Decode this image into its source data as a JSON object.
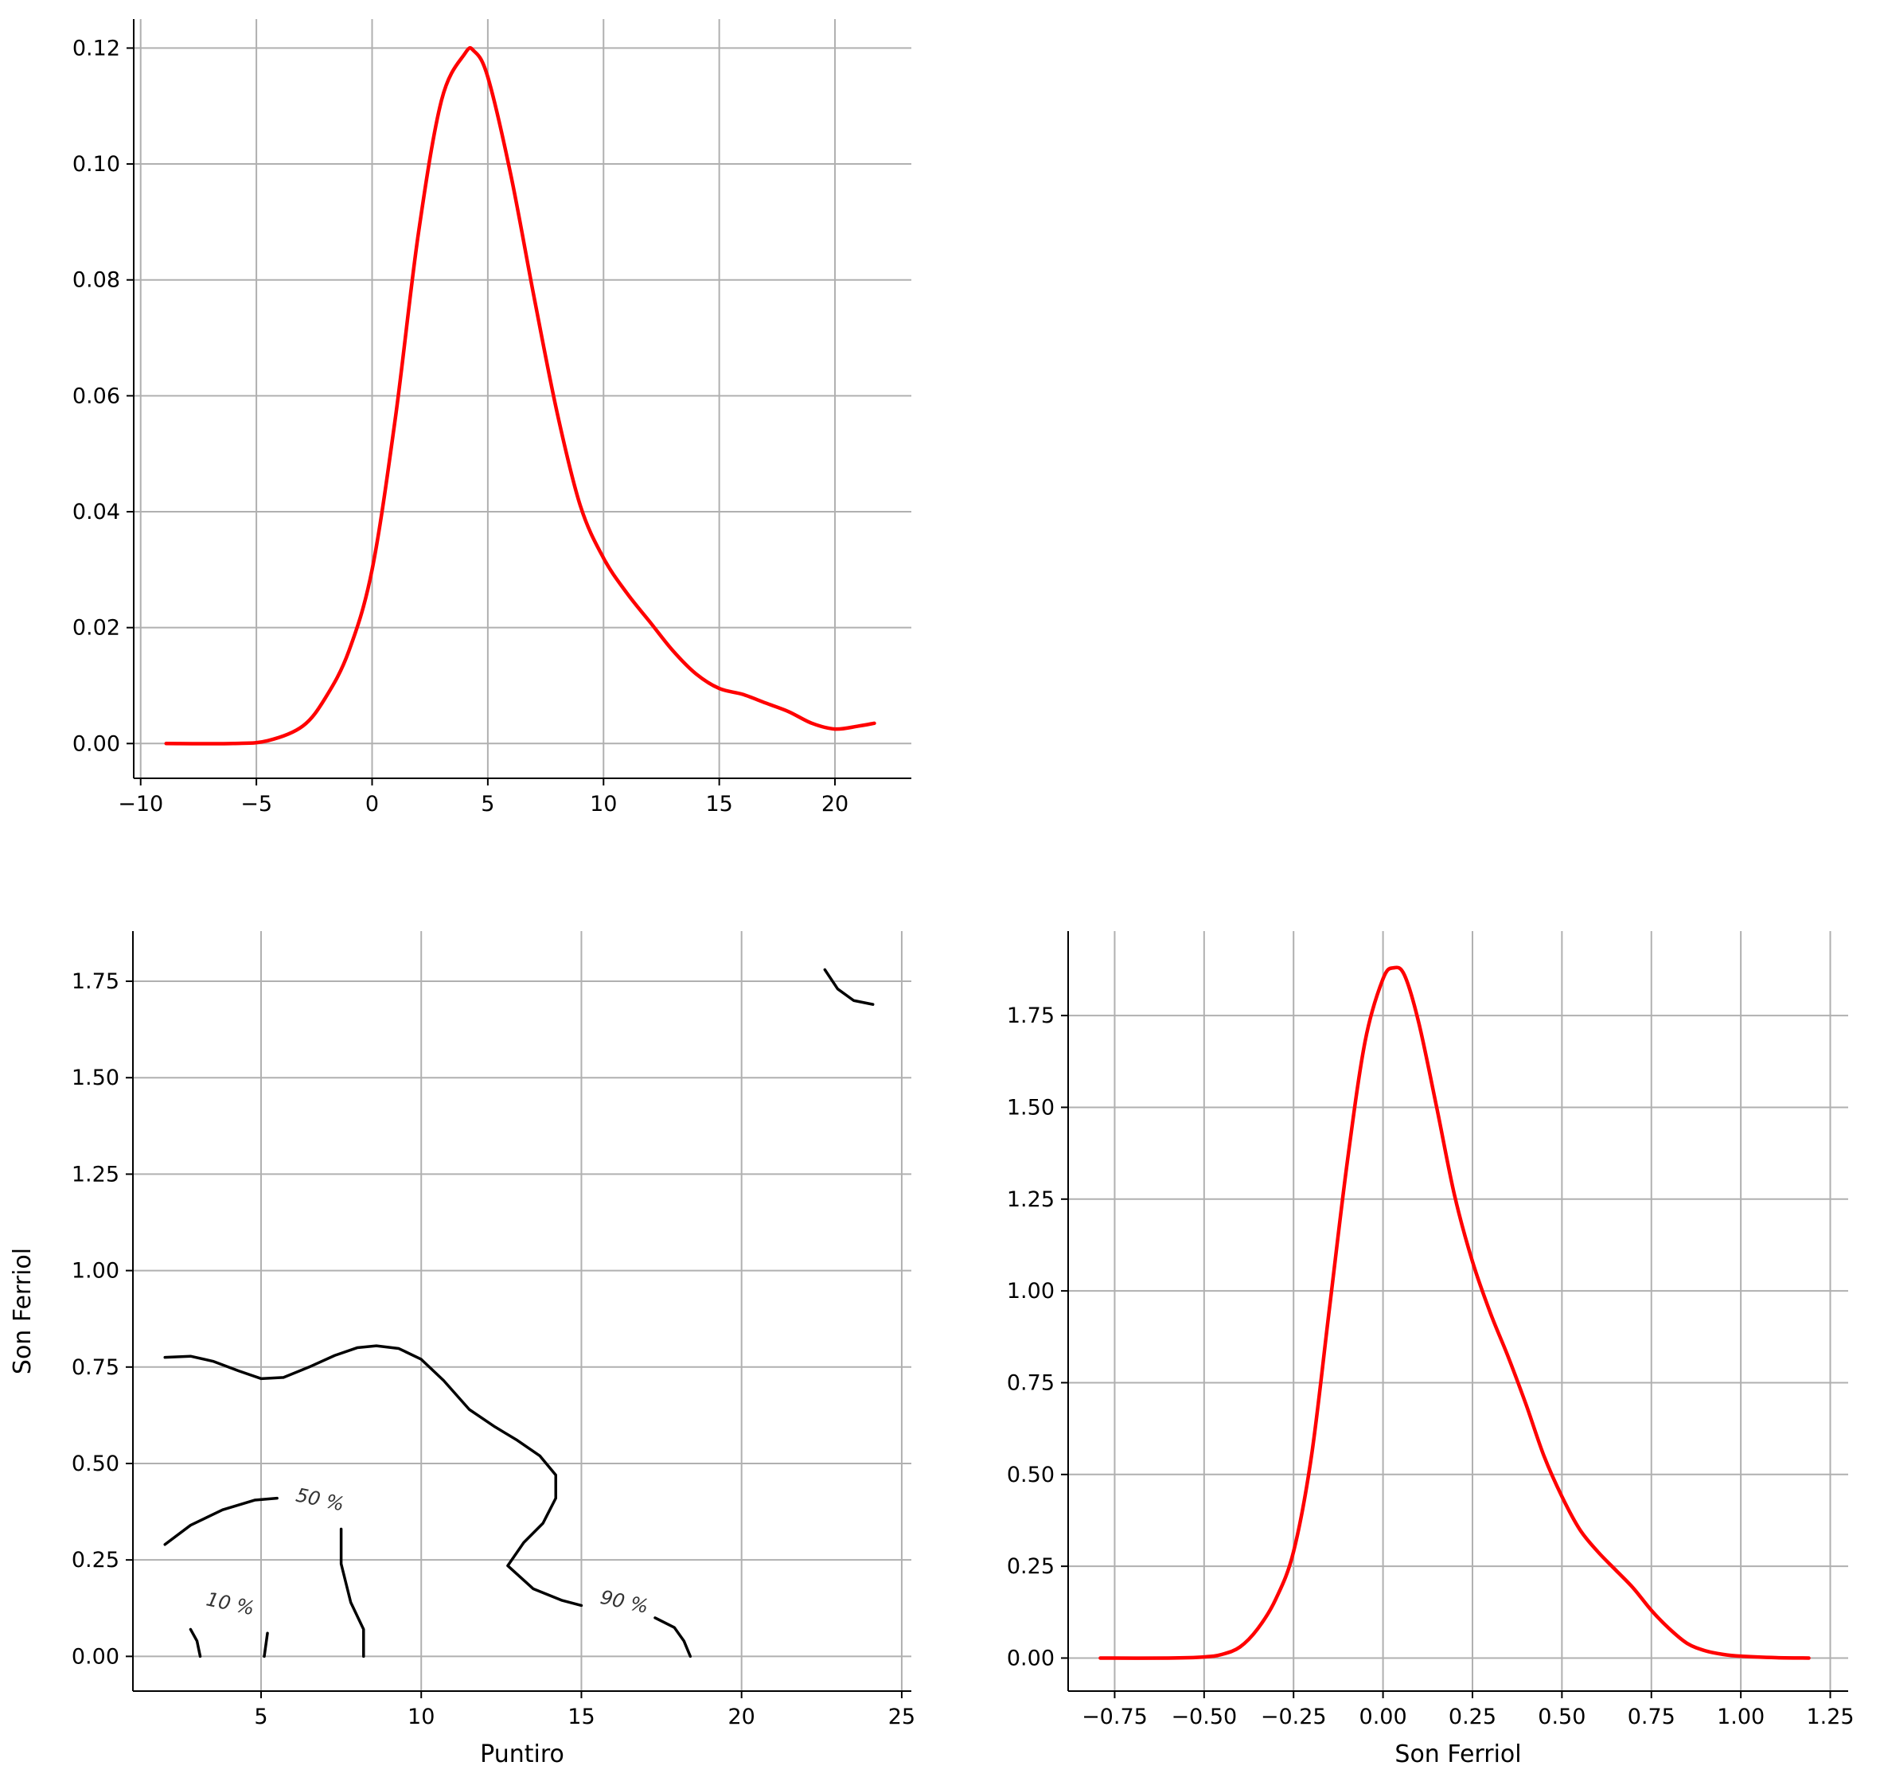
{
  "chart_data": [
    {
      "type": "line",
      "panel": "top-left",
      "title": "",
      "xlabel": "",
      "ylabel": "",
      "xlim": [
        -10.3,
        23.3
      ],
      "ylim": [
        -0.006,
        0.125
      ],
      "x_ticks": [
        -10,
        -5,
        0,
        5,
        10,
        15,
        20
      ],
      "x_tick_labels": [
        "−10",
        "−5",
        "0",
        "5",
        "10",
        "15",
        "20"
      ],
      "y_ticks": [
        0.0,
        0.02,
        0.04,
        0.06,
        0.08,
        0.1,
        0.12
      ],
      "y_tick_labels": [
        "0.00",
        "0.02",
        "0.04",
        "0.06",
        "0.08",
        "0.10",
        "0.12"
      ],
      "grid": true,
      "color": "#ff0000",
      "x": [
        -8.9,
        -6,
        -4.5,
        -3,
        -2,
        -1,
        0,
        1,
        2,
        3,
        4,
        4.4,
        5,
        6,
        7,
        8,
        9,
        10,
        11,
        12,
        13,
        14,
        15,
        16,
        17,
        18,
        19,
        20,
        21,
        21.7
      ],
      "y": [
        0.0,
        0.0,
        0.0005,
        0.003,
        0.008,
        0.016,
        0.03,
        0.056,
        0.088,
        0.111,
        0.119,
        0.1195,
        0.115,
        0.098,
        0.077,
        0.057,
        0.041,
        0.032,
        0.026,
        0.021,
        0.016,
        0.012,
        0.0095,
        0.0085,
        0.007,
        0.0055,
        0.0035,
        0.0025,
        0.003,
        0.0035
      ]
    },
    {
      "type": "contour",
      "panel": "bottom-left",
      "title": "",
      "xlabel": "Puntiro",
      "ylabel": "Son Ferriol",
      "xlim": [
        1.0,
        25.3
      ],
      "ylim": [
        -0.09,
        1.88
      ],
      "x_ticks": [
        5,
        10,
        15,
        20,
        25
      ],
      "x_tick_labels": [
        "5",
        "10",
        "15",
        "20",
        "25"
      ],
      "y_ticks": [
        0.0,
        0.25,
        0.5,
        0.75,
        1.0,
        1.25,
        1.5,
        1.75
      ],
      "y_tick_labels": [
        "0.00",
        "0.25",
        "0.50",
        "0.75",
        "1.00",
        "1.25",
        "1.50",
        "1.75"
      ],
      "grid": true,
      "color": "#000000",
      "levels": [
        {
          "label": "10 %",
          "label_at": [
            4.0,
            0.12
          ],
          "segments": [
            [
              [
                2.8,
                0.07
              ],
              [
                3.0,
                0.04
              ],
              [
                3.1,
                0.0
              ]
            ],
            [
              [
                5.2,
                0.06
              ],
              [
                5.1,
                0.0
              ]
            ]
          ]
        },
        {
          "label": "50 %",
          "label_at": [
            6.8,
            0.39
          ],
          "segments": [
            [
              [
                2.0,
                0.29
              ],
              [
                2.8,
                0.34
              ],
              [
                3.8,
                0.38
              ],
              [
                4.8,
                0.405
              ],
              [
                5.5,
                0.41
              ]
            ],
            [
              [
                7.5,
                0.33
              ],
              [
                7.5,
                0.24
              ],
              [
                7.8,
                0.14
              ],
              [
                8.2,
                0.07
              ],
              [
                8.2,
                0.0
              ]
            ]
          ]
        },
        {
          "label": "90 %",
          "label_at": [
            16.3,
            0.125
          ],
          "segments": [
            [
              [
                2.0,
                0.775
              ],
              [
                2.8,
                0.778
              ],
              [
                3.5,
                0.765
              ],
              [
                4.3,
                0.74
              ],
              [
                5.0,
                0.72
              ],
              [
                5.7,
                0.723
              ],
              [
                6.5,
                0.75
              ],
              [
                7.3,
                0.78
              ],
              [
                8.0,
                0.8
              ],
              [
                8.6,
                0.805
              ],
              [
                9.3,
                0.798
              ],
              [
                10.0,
                0.77
              ],
              [
                10.7,
                0.715
              ],
              [
                11.5,
                0.64
              ],
              [
                12.3,
                0.595
              ],
              [
                13.0,
                0.56
              ],
              [
                13.7,
                0.52
              ],
              [
                14.2,
                0.47
              ],
              [
                14.2,
                0.41
              ],
              [
                13.8,
                0.345
              ],
              [
                13.2,
                0.295
              ],
              [
                12.7,
                0.235
              ],
              [
                13.5,
                0.175
              ],
              [
                14.4,
                0.145
              ],
              [
                15.0,
                0.132
              ]
            ],
            [
              [
                17.3,
                0.1
              ],
              [
                17.9,
                0.075
              ],
              [
                18.2,
                0.04
              ],
              [
                18.4,
                0.0
              ]
            ],
            [
              [
                22.6,
                1.78
              ],
              [
                23.0,
                1.73
              ],
              [
                23.5,
                1.7
              ],
              [
                24.1,
                1.69
              ]
            ]
          ]
        }
      ]
    },
    {
      "type": "line",
      "panel": "bottom-right",
      "title": "",
      "xlabel": "Son Ferriol",
      "ylabel": "",
      "xlim": [
        -0.88,
        1.3
      ],
      "ylim": [
        -0.09,
        1.98
      ],
      "x_ticks": [
        -0.75,
        -0.5,
        -0.25,
        0.0,
        0.25,
        0.5,
        0.75,
        1.0,
        1.25
      ],
      "x_tick_labels": [
        "−0.75",
        "−0.50",
        "−0.25",
        "0.00",
        "0.25",
        "0.50",
        "0.75",
        "1.00",
        "1.25"
      ],
      "y_ticks": [
        0.0,
        0.25,
        0.5,
        0.75,
        1.0,
        1.25,
        1.5,
        1.75
      ],
      "y_tick_labels": [
        "0.00",
        "0.25",
        "0.50",
        "0.75",
        "1.00",
        "1.25",
        "1.50",
        "1.75"
      ],
      "grid": true,
      "color": "#ff0000",
      "x": [
        -0.79,
        -0.6,
        -0.5,
        -0.45,
        -0.4,
        -0.35,
        -0.3,
        -0.25,
        -0.2,
        -0.15,
        -0.1,
        -0.05,
        0.0,
        0.03,
        0.06,
        0.1,
        0.15,
        0.2,
        0.25,
        0.3,
        0.35,
        0.4,
        0.45,
        0.5,
        0.55,
        0.6,
        0.65,
        0.7,
        0.75,
        0.8,
        0.85,
        0.9,
        0.95,
        1.0,
        1.1,
        1.19
      ],
      "y": [
        0.0,
        0.0,
        0.003,
        0.01,
        0.03,
        0.08,
        0.16,
        0.29,
        0.55,
        0.95,
        1.35,
        1.68,
        1.85,
        1.88,
        1.86,
        1.73,
        1.5,
        1.26,
        1.08,
        0.94,
        0.82,
        0.69,
        0.55,
        0.44,
        0.35,
        0.29,
        0.24,
        0.19,
        0.13,
        0.08,
        0.04,
        0.02,
        0.01,
        0.005,
        0.001,
        0.0
      ]
    }
  ]
}
